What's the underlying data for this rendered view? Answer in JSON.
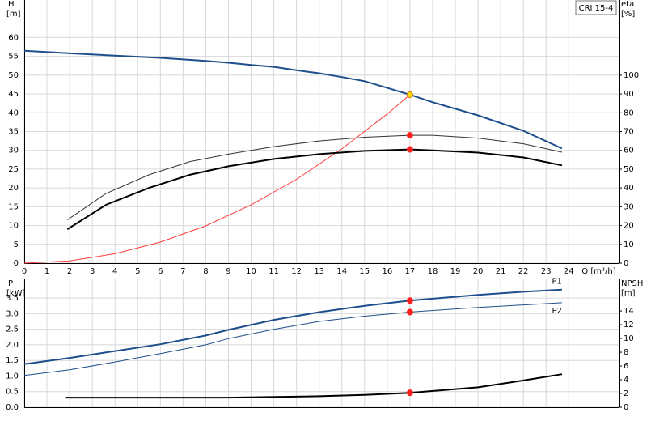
{
  "chart_data": [
    {
      "type": "line",
      "product": "CRI 15-4",
      "y_label": "H",
      "y_unit": "[m]",
      "y2_label": "eta",
      "y2_unit": "[%]",
      "x_label": "Q [m³/h]",
      "xlim": [
        0,
        26.2
      ],
      "xticks": [
        0,
        1,
        2,
        3,
        4,
        5,
        6,
        7,
        8,
        9,
        10,
        11,
        12,
        13,
        14,
        15,
        16,
        17,
        18,
        19,
        20,
        21,
        22,
        23,
        24
      ],
      "ylim": [
        0,
        70
      ],
      "yticks": [
        0,
        5,
        10,
        15,
        20,
        25,
        30,
        35,
        40,
        45,
        50,
        55,
        60
      ],
      "y2lim": [
        0,
        140
      ],
      "y2ticks": [
        0,
        10,
        20,
        30,
        40,
        50,
        60,
        70,
        80,
        90,
        100
      ],
      "grid": true,
      "xtick_labels": true,
      "series": [
        {
          "color": "#1f4e8c",
          "line_width": 2,
          "x": [
            0,
            2,
            4,
            6,
            8,
            9,
            10,
            11,
            12,
            13,
            14,
            15,
            16,
            17,
            18,
            20,
            22,
            23.7
          ],
          "values": [
            56.5,
            55.8,
            55.2,
            54.6,
            53.8,
            53.3,
            52.7,
            52.2,
            51.3,
            50.5,
            49.5,
            48.4,
            46.6,
            44.8,
            42.8,
            39.3,
            35.2,
            30.5
          ]
        },
        {
          "color": "#ff3b3b",
          "line_width": 1,
          "x": [
            0,
            2,
            4,
            6,
            8,
            10,
            12,
            14,
            16,
            17
          ],
          "values": [
            0,
            0.6,
            2.5,
            5.6,
            9.9,
            15.5,
            22.3,
            30.4,
            39.7,
            44.8
          ]
        },
        {
          "color": "#333333",
          "line_width": 1,
          "axis": "y2",
          "x": [
            1.9,
            3.6,
            5.5,
            7.3,
            9,
            11,
            13,
            15,
            17,
            18,
            20,
            22,
            23.7
          ],
          "values": [
            23,
            37,
            47,
            54,
            58,
            62,
            65,
            67,
            68,
            68,
            66.5,
            63.5,
            59
          ]
        },
        {
          "color": "#000000",
          "line_width": 2,
          "axis": "y2",
          "x": [
            1.9,
            3.6,
            5.5,
            7.3,
            9,
            11,
            13,
            15,
            17,
            18,
            20,
            22,
            23.7
          ],
          "values": [
            18,
            31,
            40,
            47,
            51.5,
            55.4,
            58,
            59.7,
            60.5,
            60,
            58.8,
            56.2,
            52
          ]
        }
      ],
      "markers": [
        {
          "x": 17,
          "y": 44.8,
          "color": "#ffd700",
          "axis": "y"
        },
        {
          "x": 17,
          "y": 68,
          "color": "#ff2020",
          "axis": "y2"
        },
        {
          "x": 17,
          "y": 60.5,
          "color": "#ff2020",
          "axis": "y2"
        }
      ]
    },
    {
      "type": "line",
      "y_label": "P",
      "y_unit": "[kW]",
      "y2_label": "NPSH",
      "y2_unit": "[m]",
      "xlim": [
        0,
        26.2
      ],
      "xticks": [
        0,
        1,
        2,
        3,
        4,
        5,
        6,
        7,
        8,
        9,
        10,
        11,
        12,
        13,
        14,
        15,
        16,
        17,
        18,
        19,
        20,
        21,
        22,
        23,
        24
      ],
      "ylim": [
        0,
        4.1
      ],
      "yticks": [
        {
          "value": 0,
          "label": "0.0"
        },
        0.5,
        {
          "value": 1,
          "label": "1.0"
        },
        1.5,
        {
          "value": 2,
          "label": "2.0"
        },
        2.5,
        {
          "value": 3,
          "label": "3.0"
        },
        3.5
      ],
      "y2lim": [
        0,
        18.6
      ],
      "y2ticks": [
        0,
        2,
        4,
        6,
        8,
        10,
        12,
        14
      ],
      "grid": true,
      "xtick_labels": false,
      "series": [
        {
          "name": "P1",
          "color": "#1f4e8c",
          "line_width": 2,
          "x": [
            0,
            2,
            4,
            6,
            8,
            9,
            11,
            13,
            15,
            17,
            20,
            22,
            23.7
          ],
          "values": [
            1.38,
            1.58,
            1.8,
            2.02,
            2.3,
            2.48,
            2.8,
            3.05,
            3.25,
            3.42,
            3.6,
            3.7,
            3.77
          ]
        },
        {
          "name": "P2",
          "color": "#1f4e8c",
          "line_width": 1,
          "x": [
            0,
            2,
            4,
            6,
            8,
            9,
            11,
            13,
            15,
            17,
            20,
            22,
            23.7
          ],
          "values": [
            1.02,
            1.2,
            1.45,
            1.72,
            2,
            2.2,
            2.5,
            2.75,
            2.92,
            3.05,
            3.2,
            3.28,
            3.35
          ]
        },
        {
          "color": "#000000",
          "line_width": 2,
          "axis": "y2",
          "x": [
            1.8,
            9,
            13,
            15,
            17,
            20,
            22,
            23.7
          ],
          "values": [
            1.4,
            1.4,
            1.6,
            1.8,
            2.1,
            2.9,
            3.9,
            4.8
          ]
        }
      ],
      "markers": [
        {
          "x": 17,
          "y": 3.42,
          "color": "#ff2020",
          "axis": "y"
        },
        {
          "x": 17,
          "y": 3.05,
          "color": "#ff2020",
          "axis": "y"
        },
        {
          "x": 17,
          "y": 2.1,
          "color": "#ff2020",
          "axis": "y2"
        }
      ]
    }
  ]
}
